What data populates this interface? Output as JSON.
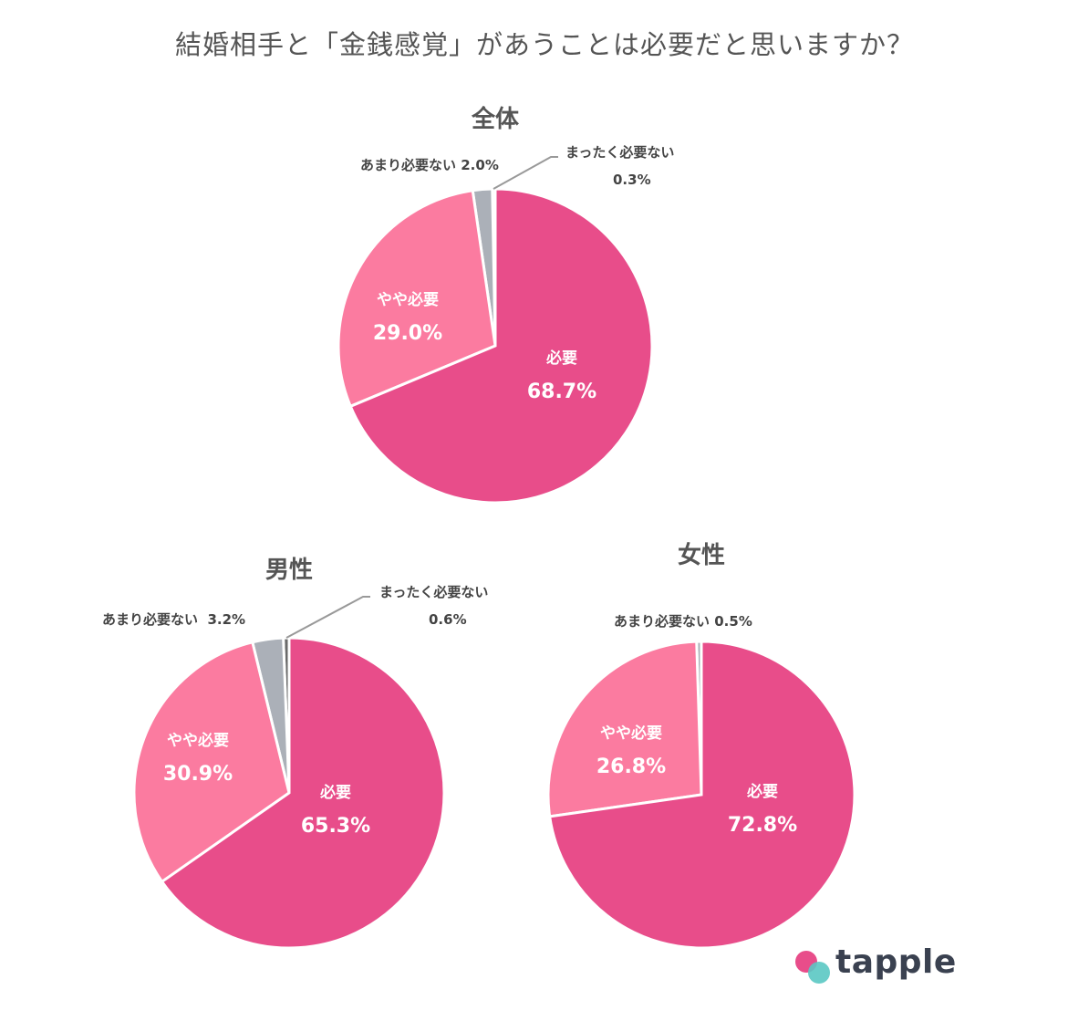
{
  "chart_data": [
    {
      "type": "pie",
      "title": "全体",
      "slices": [
        {
          "name": "必要",
          "value": 68.7,
          "label": "68.7%",
          "color": "#e84d8a"
        },
        {
          "name": "やや必要",
          "value": 29.0,
          "label": "29.0%",
          "color": "#fb7ba0"
        },
        {
          "name": "あまり必要ない",
          "value": 2.0,
          "label": "2.0%",
          "color": "#abb0b8"
        },
        {
          "name": "まったく必要ない",
          "value": 0.3,
          "label": "0.3%",
          "color": "#d0d0d0"
        }
      ]
    },
    {
      "type": "pie",
      "title": "男性",
      "slices": [
        {
          "name": "必要",
          "value": 65.3,
          "label": "65.3%",
          "color": "#e84d8a"
        },
        {
          "name": "やや必要",
          "value": 30.9,
          "label": "30.9%",
          "color": "#fb7ba0"
        },
        {
          "name": "あまり必要ない",
          "value": 3.2,
          "label": "3.2%",
          "color": "#abb0b8"
        },
        {
          "name": "まったく必要ない",
          "value": 0.6,
          "label": "0.6%",
          "color": "#6a6a6a"
        }
      ]
    },
    {
      "type": "pie",
      "title": "女性",
      "slices": [
        {
          "name": "必要",
          "value": 72.8,
          "label": "72.8%",
          "color": "#e84d8a"
        },
        {
          "name": "やや必要",
          "value": 26.8,
          "label": "26.8%",
          "color": "#fb7ba0"
        },
        {
          "name": "あまり必要ない",
          "value": 0.5,
          "label": "0.5%",
          "color": "#abb0b8"
        }
      ]
    }
  ],
  "title": "結婚相手と「金銭感覚」があうことは必要だと思いますか？",
  "logo": "tapple"
}
